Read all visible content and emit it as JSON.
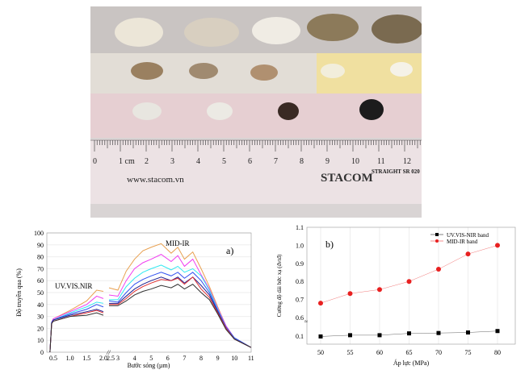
{
  "photo": {
    "ruler_brand": "STACOM",
    "ruler_url": "www.stacom.vn",
    "ruler_unit": "1 cm",
    "ruler_model": "STRAIGHT SR 020",
    "ruler_numbers": [
      "0",
      "1 cm",
      "2",
      "3",
      "4",
      "5",
      "6",
      "7",
      "8",
      "9",
      "10",
      "11",
      "12"
    ]
  },
  "chart_data": [
    {
      "type": "line",
      "panel_label": "a)",
      "xlabel": "Bước sóng (µm)",
      "ylabel": "Độ truyền qua (%)",
      "ylim": [
        0,
        100
      ],
      "yticks": [
        "0",
        "10",
        "20",
        "30",
        "40",
        "50",
        "60",
        "70",
        "80",
        "90",
        "100"
      ],
      "xticks_left": [
        "0.5",
        "1.0",
        "1.5",
        "2.0"
      ],
      "xticks_right": [
        "2.5",
        "3",
        "4",
        "5",
        "6",
        "7",
        "8",
        "9",
        "10",
        "11"
      ],
      "annotations": [
        "UV.VIS.NIR",
        "MID-IR"
      ],
      "x_left": [
        0.4,
        0.45,
        0.5,
        1.0,
        1.5,
        1.8,
        2.0
      ],
      "x_right": [
        2.5,
        3,
        3.5,
        4,
        4.5,
        5,
        5.6,
        6.2,
        6.6,
        7,
        7.5,
        8,
        8.5,
        9,
        9.5,
        10,
        11
      ],
      "series": [
        {
          "color": "#e8a050",
          "left": [
            0,
            25,
            28,
            35,
            43,
            52,
            51
          ],
          "right": [
            54,
            52,
            68,
            78,
            85,
            88,
            91,
            83,
            88,
            78,
            84,
            70,
            55,
            38,
            22,
            12,
            4
          ]
        },
        {
          "color": "#f03cf0",
          "left": [
            0,
            25,
            28,
            34,
            40,
            47,
            45
          ],
          "right": [
            48,
            47,
            60,
            70,
            75,
            78,
            82,
            76,
            81,
            72,
            78,
            65,
            53,
            37,
            22,
            12,
            4
          ]
        },
        {
          "color": "#30e8f0",
          "left": [
            0,
            25,
            27,
            33,
            38,
            42,
            41
          ],
          "right": [
            44,
            44,
            55,
            62,
            67,
            70,
            73,
            69,
            72,
            67,
            70,
            64,
            52,
            36,
            21,
            12,
            4
          ]
        },
        {
          "color": "#3050f0",
          "left": [
            0,
            25,
            27,
            32,
            36,
            40,
            38
          ],
          "right": [
            43,
            42,
            50,
            57,
            61,
            64,
            67,
            64,
            67,
            62,
            67,
            60,
            50,
            35,
            21,
            12,
            4
          ]
        },
        {
          "color": "#202090",
          "left": [
            0,
            24,
            27,
            31,
            34,
            36,
            34
          ],
          "right": [
            41,
            41,
            47,
            53,
            57,
            60,
            63,
            60,
            63,
            58,
            63,
            56,
            48,
            34,
            20,
            11,
            4
          ]
        },
        {
          "color": "#e03030",
          "left": [
            0,
            24,
            26,
            30,
            33,
            35,
            33
          ],
          "right": [
            40,
            40,
            45,
            51,
            55,
            58,
            61,
            60,
            62,
            57,
            63,
            53,
            46,
            33,
            20,
            11,
            4
          ]
        },
        {
          "color": "#303030",
          "left": [
            0,
            24,
            26,
            30,
            31,
            33,
            31
          ],
          "right": [
            39,
            39,
            43,
            48,
            51,
            53,
            56,
            54,
            57,
            53,
            57,
            50,
            44,
            32,
            19,
            11,
            4
          ]
        }
      ]
    },
    {
      "type": "line",
      "panel_label": "b)",
      "xlabel": "Áp lực (MPa)",
      "ylabel": "Cường độ dải bức xạ (đvtđ)",
      "x": [
        50,
        55,
        60,
        65,
        70,
        75,
        80
      ],
      "xticks": [
        "50",
        "55",
        "60",
        "65",
        "70",
        "75",
        "80"
      ],
      "yticks_upper": [
        "0.6",
        "0.7",
        "0.8",
        "0.9",
        "1.0",
        "1.1"
      ],
      "yticks_lower": [
        "0.1"
      ],
      "ylim_upper": [
        0.6,
        1.1
      ],
      "legend": "top-right",
      "series": [
        {
          "name": "UV.VIS-NIR band",
          "color": "#000000",
          "marker": "square",
          "values": [
            0.098,
            0.105,
            0.105,
            0.115,
            0.117,
            0.12,
            0.128
          ]
        },
        {
          "name": "MID-IR band",
          "color": "#e82020",
          "marker": "circle",
          "values": [
            0.68,
            0.733,
            0.755,
            0.8,
            0.868,
            0.952,
            1.0
          ]
        }
      ]
    }
  ]
}
